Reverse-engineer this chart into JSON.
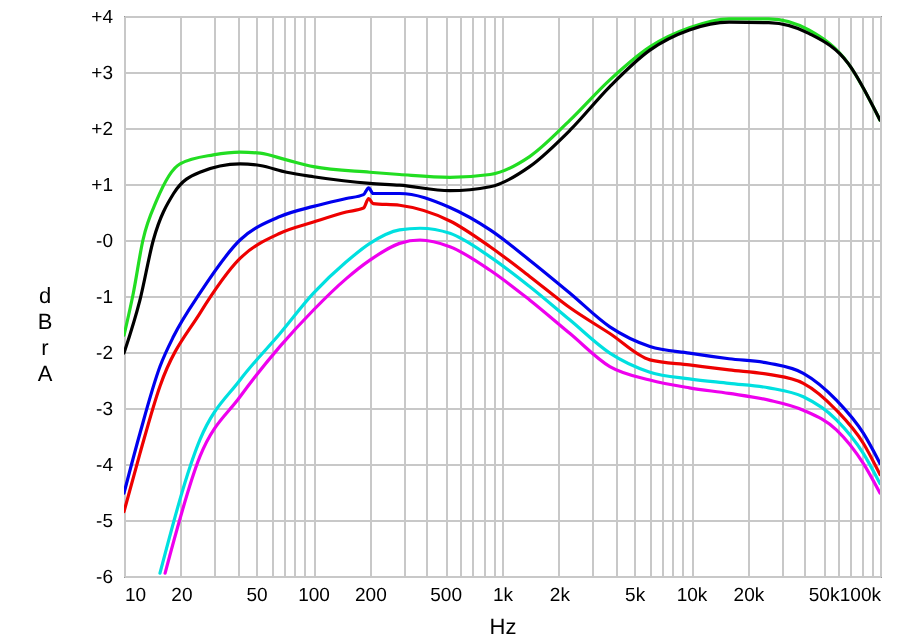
{
  "chart_data": {
    "type": "line",
    "xlabel": "Hz",
    "ylabel": "dBr A",
    "log": "x",
    "grid": true,
    "marker": "none",
    "line_style": "solid",
    "xlim": [
      10,
      100000
    ],
    "ylim": [
      -6,
      4
    ],
    "xticks": [
      {
        "value": 10,
        "label": "10"
      },
      {
        "value": 20,
        "label": "20"
      },
      {
        "value": 30,
        "label": null
      },
      {
        "value": 40,
        "label": null
      },
      {
        "value": 50,
        "label": "50"
      },
      {
        "value": 60,
        "label": null
      },
      {
        "value": 70,
        "label": null
      },
      {
        "value": 80,
        "label": null
      },
      {
        "value": 90,
        "label": null
      },
      {
        "value": 100,
        "label": "100"
      },
      {
        "value": 200,
        "label": "200"
      },
      {
        "value": 300,
        "label": null
      },
      {
        "value": 400,
        "label": null
      },
      {
        "value": 500,
        "label": "500"
      },
      {
        "value": 600,
        "label": null
      },
      {
        "value": 700,
        "label": null
      },
      {
        "value": 800,
        "label": null
      },
      {
        "value": 900,
        "label": null
      },
      {
        "value": 1000,
        "label": "1k"
      },
      {
        "value": 2000,
        "label": "2k"
      },
      {
        "value": 3000,
        "label": null
      },
      {
        "value": 4000,
        "label": null
      },
      {
        "value": 5000,
        "label": "5k"
      },
      {
        "value": 6000,
        "label": null
      },
      {
        "value": 7000,
        "label": null
      },
      {
        "value": 8000,
        "label": null
      },
      {
        "value": 9000,
        "label": null
      },
      {
        "value": 10000,
        "label": "10k"
      },
      {
        "value": 20000,
        "label": "20k"
      },
      {
        "value": 30000,
        "label": null
      },
      {
        "value": 40000,
        "label": null
      },
      {
        "value": 50000,
        "label": "50k"
      },
      {
        "value": 60000,
        "label": null
      },
      {
        "value": 70000,
        "label": null
      },
      {
        "value": 80000,
        "label": null
      },
      {
        "value": 90000,
        "label": null
      },
      {
        "value": 100000,
        "label": "100k"
      }
    ],
    "yticks": [
      {
        "value": -6,
        "label": "-6"
      },
      {
        "value": -5,
        "label": "-5"
      },
      {
        "value": -4,
        "label": "-4"
      },
      {
        "value": -3,
        "label": "-3"
      },
      {
        "value": -2,
        "label": "-2"
      },
      {
        "value": -1,
        "label": "-1"
      },
      {
        "value": 0,
        "label": "-0"
      },
      {
        "value": 1,
        "label": "+1"
      },
      {
        "value": 2,
        "label": "+2"
      },
      {
        "value": 3,
        "label": "+3"
      },
      {
        "value": 4,
        "label": "+4"
      }
    ],
    "series": [
      {
        "color": "#22dd22",
        "x": [
          10,
          11.2,
          12.6,
          14.9,
          19.8,
          29.7,
          41.1,
          52.5,
          72.5,
          100.6,
          200,
          287,
          530,
          865,
          1400,
          2290,
          3720,
          6060,
          9800,
          15900,
          25800,
          42000,
          68000,
          100000
        ],
        "values": [
          -1.7,
          -0.95,
          0,
          0.71,
          1.36,
          1.52,
          1.57,
          1.55,
          1.43,
          1.31,
          1.21,
          1.17,
          1.12,
          1.17,
          1.49,
          2.14,
          2.86,
          3.45,
          3.79,
          3.95,
          3.95,
          3.75,
          3.15,
          2.14
        ]
      },
      {
        "color": "#000000",
        "x": [
          10,
          12.15,
          14.3,
          18.3,
          25.2,
          41.1,
          52.5,
          72.5,
          100.6,
          200,
          287,
          530,
          865,
          1400,
          2290,
          3720,
          6060,
          9800,
          15900,
          25800,
          42000,
          68000,
          100000
        ],
        "values": [
          -2.02,
          -1.07,
          0,
          0.83,
          1.21,
          1.36,
          1.33,
          1.21,
          1.13,
          1.01,
          0.98,
          0.88,
          0.95,
          1.31,
          1.96,
          2.74,
          3.39,
          3.75,
          3.89,
          3.88,
          3.69,
          3.15,
          2.14
        ]
      },
      {
        "color": "#0000ee",
        "x": [
          10,
          12.15,
          15.5,
          18.3,
          25.2,
          41.1,
          66.9,
          100.6,
          150,
          185,
          197,
          208,
          287,
          530,
          865,
          1400,
          2290,
          3720,
          6060,
          9800,
          15900,
          25800,
          39300,
          58800,
          81600,
          100000
        ],
        "values": [
          -4.52,
          -3.45,
          -2.26,
          -1.72,
          -0.95,
          0,
          0.42,
          0.6,
          0.74,
          0.81,
          0.93,
          0.83,
          0.83,
          0.58,
          0.18,
          -0.36,
          -0.95,
          -1.55,
          -1.9,
          -2.02,
          -2.12,
          -2.2,
          -2.38,
          -2.86,
          -3.45,
          -3.99
        ]
      },
      {
        "color": "#ee0000",
        "x": [
          10,
          12.15,
          15.5,
          25.2,
          41.1,
          66.9,
          100.6,
          150,
          185,
          197,
          208,
          287,
          530,
          865,
          1400,
          2290,
          3720,
          6060,
          9800,
          15900,
          25800,
          39300,
          58800,
          81600,
          100000
        ],
        "values": [
          -4.85,
          -3.81,
          -2.61,
          -1.31,
          -0.33,
          0.12,
          0.32,
          0.5,
          0.57,
          0.74,
          0.65,
          0.62,
          0.34,
          -0.12,
          -0.65,
          -1.21,
          -1.67,
          -2.14,
          -2.23,
          -2.32,
          -2.4,
          -2.56,
          -3.04,
          -3.63,
          -4.19
        ]
      },
      {
        "color": "#00e0e0",
        "x": [
          15.5,
          25.2,
          41.1,
          66.9,
          100.6,
          150,
          200,
          287,
          368,
          530,
          865,
          1400,
          2290,
          3720,
          6060,
          9800,
          15900,
          25800,
          39300,
          58800,
          81600,
          100000
        ],
        "values": [
          -5.95,
          -3.57,
          -2.5,
          -1.67,
          -0.95,
          -0.39,
          -0.06,
          0.18,
          0.21,
          0.12,
          -0.3,
          -0.83,
          -1.43,
          -2.02,
          -2.36,
          -2.48,
          -2.56,
          -2.64,
          -2.8,
          -3.21,
          -3.81,
          -4.35
        ]
      },
      {
        "color": "#ee00ee",
        "x": [
          16.5,
          25.2,
          41.1,
          66.9,
          100.6,
          150,
          200,
          287,
          368,
          530,
          865,
          1400,
          2290,
          3720,
          6060,
          9800,
          15900,
          25800,
          39300,
          58800,
          81600,
          100000
        ],
        "values": [
          -5.95,
          -3.87,
          -2.8,
          -1.9,
          -1.25,
          -0.69,
          -0.36,
          -0.06,
          0,
          -0.12,
          -0.54,
          -1.07,
          -1.67,
          -2.26,
          -2.5,
          -2.64,
          -2.74,
          -2.86,
          -3.04,
          -3.39,
          -3.99,
          -4.52
        ]
      }
    ]
  }
}
